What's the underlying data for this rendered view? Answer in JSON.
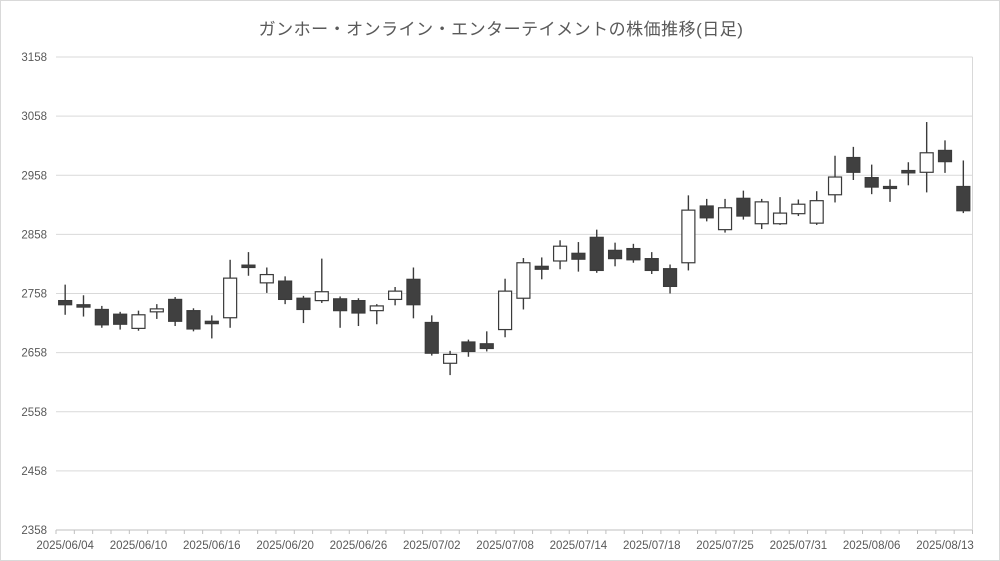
{
  "chart": {
    "title": "ガンホー・オンライン・エンターテイメントの株価推移(日足)"
  },
  "colors": {
    "background": "#ffffff",
    "up_fill": "#ffffff",
    "down_fill": "#404040",
    "outline": "#3b3b3b",
    "gridline": "#d9d9d9",
    "axis_line": "#bfbfbf",
    "text": "#595959"
  },
  "chart_data": {
    "type": "candlestick",
    "title": "ガンホー・オンライン・エンターテイメントの株価推移(日足)",
    "xlabel": "",
    "ylabel": "",
    "ylim": [
      2358,
      3158
    ],
    "ytick_step": 100,
    "ytick_labels": [
      "3158",
      "3058",
      "2958",
      "2858",
      "2758",
      "2658",
      "2558",
      "2458",
      "2358"
    ],
    "grid": "horizontal",
    "legend": "none",
    "xtick_label_every": 4,
    "xtick_labels_shown": [
      "2025/06/04",
      "2025/06/10",
      "2025/06/16",
      "2025/06/20",
      "2025/06/26",
      "2025/07/02",
      "2025/07/08",
      "2025/07/14",
      "2025/07/18",
      "2025/07/25",
      "2025/07/31",
      "2025/08/06",
      "2025/08/13"
    ],
    "dates": [
      "2025/06/04",
      "2025/06/05",
      "2025/06/06",
      "2025/06/09",
      "2025/06/10",
      "2025/06/11",
      "2025/06/12",
      "2025/06/13",
      "2025/06/16",
      "2025/06/17",
      "2025/06/18",
      "2025/06/19",
      "2025/06/20",
      "2025/06/23",
      "2025/06/24",
      "2025/06/25",
      "2025/06/26",
      "2025/06/27",
      "2025/06/30",
      "2025/07/01",
      "2025/07/02",
      "2025/07/03",
      "2025/07/04",
      "2025/07/07",
      "2025/07/08",
      "2025/07/09",
      "2025/07/10",
      "2025/07/11",
      "2025/07/14",
      "2025/07/15",
      "2025/07/16",
      "2025/07/17",
      "2025/07/18",
      "2025/07/22",
      "2025/07/23",
      "2025/07/24",
      "2025/07/25",
      "2025/07/28",
      "2025/07/29",
      "2025/07/30",
      "2025/07/31",
      "2025/08/01",
      "2025/08/04",
      "2025/08/05",
      "2025/08/06",
      "2025/08/07",
      "2025/08/08",
      "2025/08/12",
      "2025/08/13",
      "2025/08/14"
    ],
    "ohlc_note": "values are [open, high, low, close] in yen, estimated from gridlines",
    "ohlc": [
      [
        2746,
        2773,
        2722,
        2739
      ],
      [
        2739,
        2755,
        2719,
        2735
      ],
      [
        2731,
        2737,
        2700,
        2705
      ],
      [
        2723,
        2727,
        2697,
        2706
      ],
      [
        2699,
        2729,
        2695,
        2722
      ],
      [
        2727,
        2740,
        2715,
        2732
      ],
      [
        2748,
        2752,
        2703,
        2711
      ],
      [
        2729,
        2733,
        2694,
        2698
      ],
      [
        2711,
        2721,
        2682,
        2707
      ],
      [
        2717,
        2815,
        2700,
        2784
      ],
      [
        2806,
        2828,
        2788,
        2802
      ],
      [
        2776,
        2802,
        2759,
        2790
      ],
      [
        2779,
        2787,
        2740,
        2748
      ],
      [
        2750,
        2754,
        2708,
        2731
      ],
      [
        2746,
        2817,
        2742,
        2761
      ],
      [
        2749,
        2753,
        2700,
        2729
      ],
      [
        2746,
        2750,
        2703,
        2725
      ],
      [
        2729,
        2740,
        2706,
        2737
      ],
      [
        2748,
        2769,
        2738,
        2762
      ],
      [
        2782,
        2802,
        2716,
        2739
      ],
      [
        2709,
        2721,
        2653,
        2657
      ],
      [
        2640,
        2661,
        2620,
        2655
      ],
      [
        2676,
        2680,
        2651,
        2660
      ],
      [
        2673,
        2694,
        2660,
        2665
      ],
      [
        2697,
        2783,
        2684,
        2762
      ],
      [
        2750,
        2818,
        2731,
        2810
      ],
      [
        2804,
        2819,
        2782,
        2799
      ],
      [
        2813,
        2848,
        2799,
        2838
      ],
      [
        2826,
        2845,
        2795,
        2816
      ],
      [
        2853,
        2866,
        2793,
        2797
      ],
      [
        2831,
        2844,
        2804,
        2817
      ],
      [
        2834,
        2842,
        2810,
        2815
      ],
      [
        2817,
        2828,
        2791,
        2797
      ],
      [
        2800,
        2807,
        2758,
        2770
      ],
      [
        2810,
        2924,
        2797,
        2899
      ],
      [
        2906,
        2918,
        2880,
        2886
      ],
      [
        2866,
        2918,
        2861,
        2903
      ],
      [
        2919,
        2932,
        2883,
        2889
      ],
      [
        2876,
        2918,
        2867,
        2913
      ],
      [
        2876,
        2921,
        2874,
        2894
      ],
      [
        2893,
        2917,
        2889,
        2909
      ],
      [
        2877,
        2931,
        2874,
        2915
      ],
      [
        2925,
        2991,
        2912,
        2955
      ],
      [
        2988,
        3006,
        2950,
        2963
      ],
      [
        2954,
        2976,
        2926,
        2938
      ],
      [
        2939,
        2951,
        2913,
        2936
      ],
      [
        2966,
        2980,
        2941,
        2962
      ],
      [
        2963,
        3048,
        2929,
        2996
      ],
      [
        3000,
        3017,
        2962,
        2981
      ],
      [
        2939,
        2983,
        2894,
        2898
      ]
    ]
  }
}
